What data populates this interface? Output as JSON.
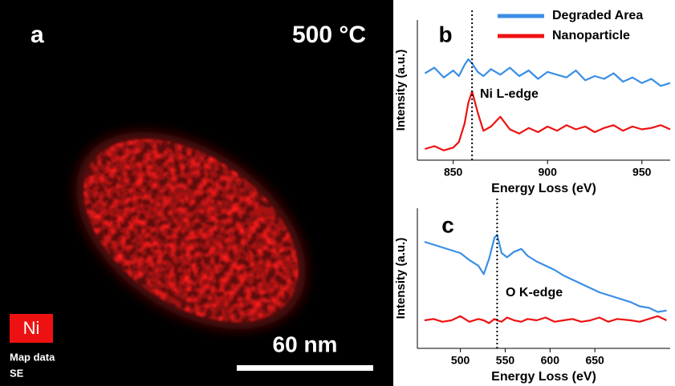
{
  "image_panel": {
    "panel_label": "a",
    "temperature": "500 °C",
    "element": "Ni",
    "info_lines": [
      "Map data",
      "SE"
    ],
    "scale_bar": "60 nm"
  },
  "chart_data": [
    {
      "type": "line",
      "panel_label": "b",
      "x_label": "Energy Loss (eV)",
      "y_label": "Intensity (a.u.)",
      "x": [
        835,
        840,
        845,
        850,
        853,
        856,
        858,
        860,
        863,
        866,
        870,
        875,
        880,
        885,
        890,
        895,
        900,
        905,
        910,
        915,
        920,
        925,
        930,
        935,
        940,
        945,
        950,
        955,
        960,
        965
      ],
      "series": [
        {
          "name": "Degraded Area",
          "color": "#3a8ee6",
          "values": [
            6.2,
            6.6,
            5.9,
            6.4,
            6.0,
            6.8,
            7.2,
            6.9,
            6.3,
            6.0,
            6.5,
            6.1,
            6.6,
            6.0,
            6.4,
            5.8,
            6.3,
            6.1,
            5.9,
            6.4,
            5.7,
            6.0,
            5.8,
            6.2,
            5.6,
            5.9,
            5.5,
            5.8,
            5.3,
            5.5
          ]
        },
        {
          "name": "Nanoparticle",
          "color": "#ee1111",
          "values": [
            0.8,
            1.0,
            0.7,
            0.9,
            1.3,
            2.6,
            4.1,
            4.9,
            3.4,
            2.1,
            2.4,
            3.1,
            2.2,
            1.9,
            2.3,
            2.0,
            2.4,
            2.1,
            2.5,
            2.2,
            2.4,
            2.0,
            2.3,
            2.5,
            2.1,
            2.4,
            2.2,
            2.3,
            2.5,
            2.2
          ]
        }
      ],
      "xlim": [
        831,
        965
      ],
      "xticks": [
        850,
        900,
        950
      ],
      "ylim": [
        0,
        10
      ],
      "annotation": {
        "text": "Ni L-edge",
        "x": 860
      }
    },
    {
      "type": "line",
      "panel_label": "c",
      "x_label": "Energy Loss (eV)",
      "y_label": "Intensity (a.u.)",
      "x": [
        460,
        470,
        480,
        490,
        500,
        510,
        520,
        526,
        532,
        538,
        541,
        546,
        552,
        560,
        568,
        575,
        585,
        595,
        605,
        615,
        625,
        635,
        645,
        655,
        665,
        675,
        690,
        700,
        710,
        720,
        730
      ],
      "series": [
        {
          "color": "#3a8ee6",
          "values": [
            7.6,
            7.4,
            7.2,
            7.0,
            6.8,
            6.3,
            5.9,
            5.3,
            6.4,
            7.9,
            8.1,
            6.8,
            6.5,
            6.9,
            7.1,
            6.6,
            6.2,
            5.9,
            5.6,
            5.2,
            4.9,
            4.6,
            4.3,
            4.0,
            3.8,
            3.6,
            3.3,
            3.0,
            2.9,
            2.6,
            2.7
          ]
        },
        {
          "color": "#ee1111",
          "values": [
            2.0,
            2.1,
            1.9,
            2.0,
            2.3,
            1.9,
            2.1,
            2.0,
            1.8,
            2.1,
            2.0,
            1.9,
            2.2,
            2.0,
            1.9,
            2.1,
            2.0,
            2.2,
            1.9,
            2.0,
            2.1,
            1.9,
            2.0,
            2.2,
            1.9,
            2.1,
            2.0,
            1.9,
            2.1,
            2.3,
            2.0
          ]
        }
      ],
      "xlim": [
        452,
        734
      ],
      "xticks": [
        500,
        550,
        600,
        650
      ],
      "ylim": [
        0,
        10
      ],
      "annotation": {
        "text": "O K-edge",
        "x": 541
      }
    }
  ]
}
